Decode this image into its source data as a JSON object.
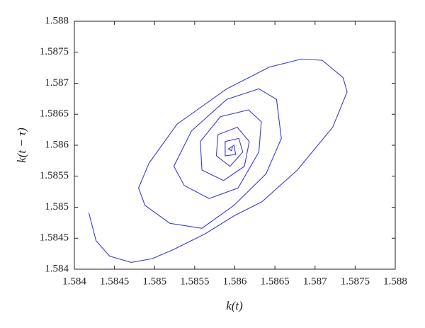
{
  "chart_data": {
    "type": "line",
    "x_label": "k(t)",
    "y_label": "k(t − τ)",
    "xlim": [
      1.584,
      1.588
    ],
    "ylim": [
      1.584,
      1.588
    ],
    "xticks": [
      1.584,
      1.5845,
      1.585,
      1.5855,
      1.586,
      1.5865,
      1.587,
      1.5875,
      1.588
    ],
    "yticks": [
      1.584,
      1.5845,
      1.585,
      1.5855,
      1.586,
      1.5865,
      1.587,
      1.5875,
      1.588
    ],
    "series": [
      {
        "color": "#3a3ad8",
        "x": [
          1.58418,
          1.58427,
          1.58444,
          1.58471,
          1.58497,
          1.58524,
          1.58563,
          1.58599,
          1.58634,
          1.58678,
          1.58722,
          1.5874,
          1.58735,
          1.58709,
          1.58683,
          1.58643,
          1.5859,
          1.58528,
          1.58493,
          1.5848,
          1.58488,
          1.58519,
          1.58559,
          1.58599,
          1.58639,
          1.58658,
          1.58652,
          1.5863,
          1.5859,
          1.58546,
          1.58524,
          1.58537,
          1.58568,
          1.58604,
          1.5863,
          1.58633,
          1.58617,
          1.58582,
          1.58557,
          1.58559,
          1.58586,
          1.58612,
          1.58618,
          1.58603,
          1.58579,
          1.58577,
          1.58594,
          1.5861,
          1.58605,
          1.58588,
          1.58588,
          1.58601,
          1.58599,
          1.58592,
          1.58596,
          1.58597
        ],
        "values": [
          1.58491,
          1.58446,
          1.58421,
          1.58411,
          1.58417,
          1.58432,
          1.58457,
          1.58486,
          1.58509,
          1.5856,
          1.58629,
          1.58686,
          1.58709,
          1.58737,
          1.58739,
          1.58726,
          1.58691,
          1.58634,
          1.58571,
          1.58531,
          1.58503,
          1.58474,
          1.58466,
          1.58503,
          1.58554,
          1.58611,
          1.58674,
          1.58691,
          1.58674,
          1.58623,
          1.58566,
          1.58535,
          1.58514,
          1.58531,
          1.58589,
          1.58638,
          1.58657,
          1.58646,
          1.58606,
          1.5856,
          1.58543,
          1.58566,
          1.58606,
          1.58629,
          1.58617,
          1.58583,
          1.58566,
          1.58589,
          1.58611,
          1.58606,
          1.58583,
          1.58585,
          1.586,
          1.58594,
          1.58591,
          1.58597
        ]
      }
    ]
  }
}
